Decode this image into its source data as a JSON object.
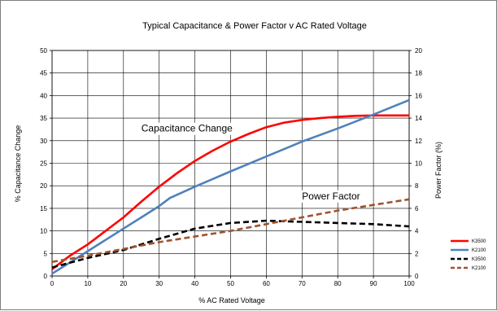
{
  "chart_data": {
    "type": "line",
    "title": "Typical Capacitance &  Power Factor  v   AC Rated Voltage",
    "xlabel": "% AC Rated Voltage",
    "ylabel_left": "% Capacitance Change",
    "ylabel_right": "Power Factor (%)",
    "xlim": [
      0,
      100
    ],
    "ylim_left": [
      0,
      50
    ],
    "ylim_right": [
      0,
      20
    ],
    "x_ticks": [
      "0",
      "10",
      "20",
      "30",
      "40",
      "50",
      "60",
      "70",
      "80",
      "90",
      "100"
    ],
    "y_ticks_left": [
      "0",
      "5",
      "10",
      "15",
      "20",
      "25",
      "30",
      "35",
      "40",
      "45",
      "50"
    ],
    "y_ticks_right": [
      "0",
      "2",
      "4",
      "6",
      "8",
      "10",
      "12",
      "14",
      "16",
      "18",
      "20"
    ],
    "grid": true,
    "legend_position": "right",
    "annotations": [
      {
        "text": "Capacitance Change",
        "x": 25,
        "y": 32
      },
      {
        "text": "Power Factor",
        "x": 70,
        "y": 17
      }
    ],
    "series": [
      {
        "name": "K3500",
        "axis": "left",
        "style": "solid",
        "color": "#ff0000",
        "points": [
          [
            0,
            1.5
          ],
          [
            5,
            4.5
          ],
          [
            10,
            7
          ],
          [
            15,
            10
          ],
          [
            20,
            13
          ],
          [
            25,
            16.5
          ],
          [
            30,
            19.8
          ],
          [
            35,
            22.8
          ],
          [
            40,
            25.5
          ],
          [
            45,
            27.8
          ],
          [
            50,
            29.8
          ],
          [
            55,
            31.5
          ],
          [
            60,
            33
          ],
          [
            65,
            34
          ],
          [
            70,
            34.6
          ],
          [
            75,
            35
          ],
          [
            80,
            35.3
          ],
          [
            85,
            35.5
          ],
          [
            90,
            35.6
          ],
          [
            95,
            35.6
          ],
          [
            100,
            35.6
          ]
        ]
      },
      {
        "name": "K2100",
        "axis": "left",
        "style": "solid",
        "color": "#4f81bd",
        "points": [
          [
            0,
            0.5
          ],
          [
            5,
            3
          ],
          [
            10,
            5.5
          ],
          [
            15,
            8
          ],
          [
            20,
            10.5
          ],
          [
            25,
            13
          ],
          [
            30,
            15.5
          ],
          [
            33,
            17.3
          ],
          [
            40,
            19.8
          ],
          [
            50,
            23.2
          ],
          [
            60,
            26.5
          ],
          [
            70,
            29.8
          ],
          [
            80,
            32.7
          ],
          [
            90,
            35.8
          ],
          [
            100,
            39
          ]
        ]
      },
      {
        "name": "K3500",
        "axis": "right",
        "style": "dashed",
        "color": "#000000",
        "points": [
          [
            0,
            0.75
          ],
          [
            10,
            1.6
          ],
          [
            20,
            2.3
          ],
          [
            30,
            3.3
          ],
          [
            40,
            4.2
          ],
          [
            50,
            4.7
          ],
          [
            60,
            4.9
          ],
          [
            70,
            4.8
          ],
          [
            80,
            4.7
          ],
          [
            90,
            4.6
          ],
          [
            100,
            4.4
          ]
        ]
      },
      {
        "name": "K2100",
        "axis": "right",
        "style": "dashed",
        "color": "#a0522d",
        "points": [
          [
            0,
            1.25
          ],
          [
            10,
            1.8
          ],
          [
            20,
            2.4
          ],
          [
            30,
            3
          ],
          [
            40,
            3.5
          ],
          [
            50,
            4
          ],
          [
            60,
            4.6
          ],
          [
            70,
            5.2
          ],
          [
            80,
            5.8
          ],
          [
            90,
            6.3
          ],
          [
            100,
            6.8
          ]
        ]
      }
    ]
  }
}
